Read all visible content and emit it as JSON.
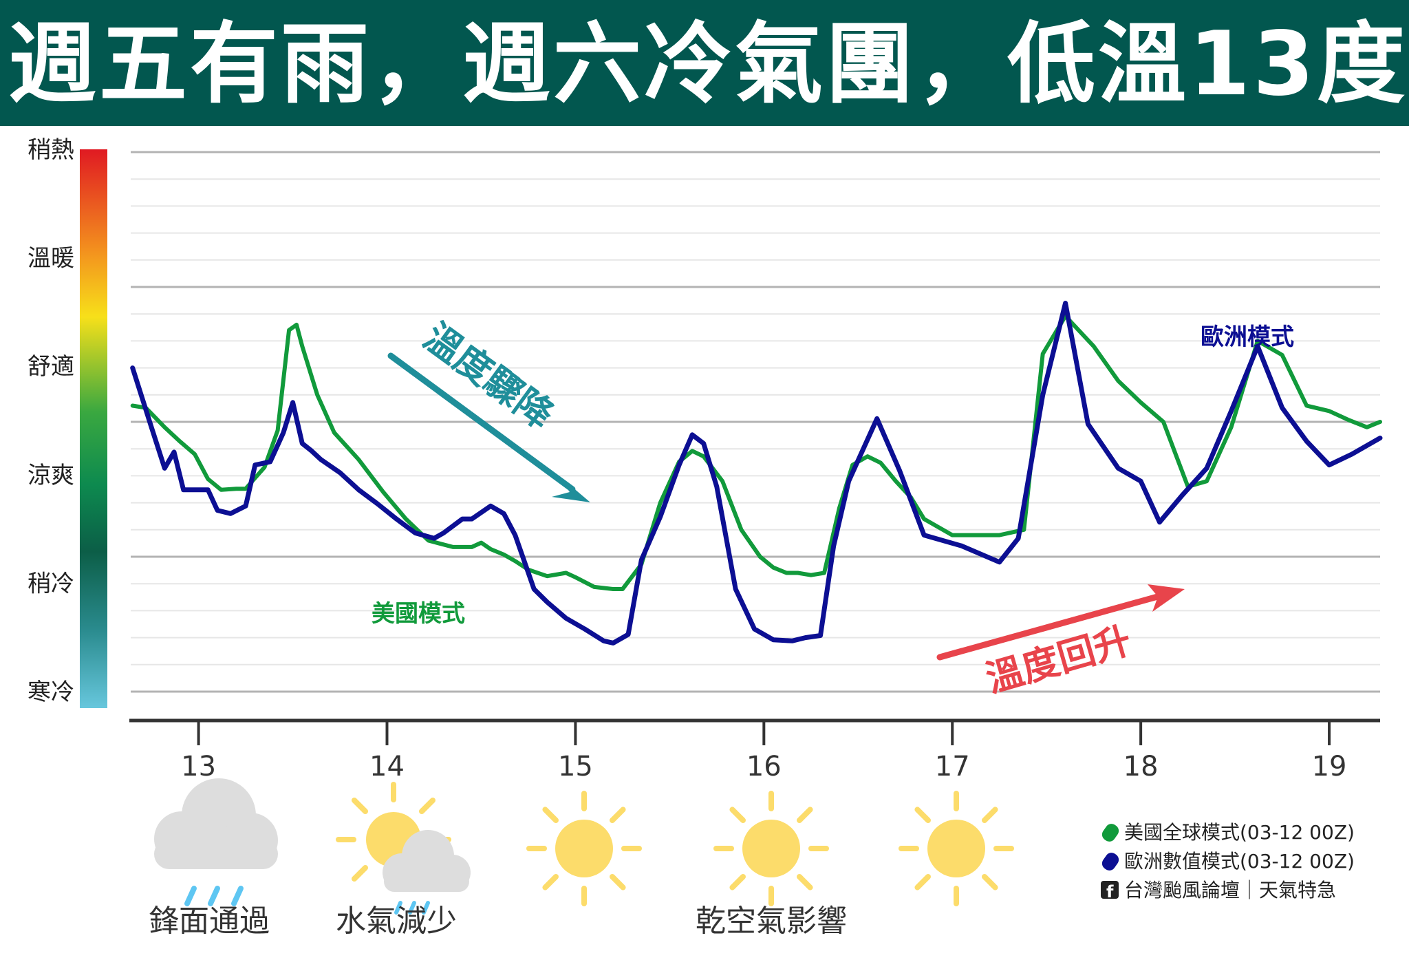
{
  "header": {
    "title": "週五有雨，週六冷氣團，低溫13度"
  },
  "colors": {
    "header_bg": "#02574f",
    "us_model": "#119a3b",
    "eu_model": "#0c0f93",
    "drop_arrow": "#1f8e9a",
    "rise_arrow": "#e8444b",
    "sun": "#fcdc6b",
    "cloud": "#dddddd",
    "rain": "#5ec6f2"
  },
  "annotations": {
    "temp_drop": "溫度驟降",
    "temp_rise": "溫度回升",
    "us_model_label": "美國模式",
    "eu_model_label": "歐洲模式"
  },
  "weather": [
    {
      "day": "13",
      "icon": "rain-cloud-icon",
      "caption": "鋒面通過"
    },
    {
      "day": "14",
      "icon": "partly-sunny-icon",
      "caption": "水氣減少"
    },
    {
      "day": "15",
      "icon": "sun-icon",
      "caption": ""
    },
    {
      "day": "16",
      "icon": "sun-icon",
      "caption": "乾空氣影響"
    },
    {
      "day": "17",
      "icon": "sun-icon",
      "caption": ""
    }
  ],
  "legend": {
    "us": "美國全球模式(03-12 00Z)",
    "eu": "歐洲數值模式(03-12 00Z)",
    "source": "台灣颱風論壇｜天氣特急"
  },
  "chart_data": {
    "type": "line",
    "xlabel": "",
    "ylabel": "",
    "x_ticks": [
      13,
      14,
      15,
      16,
      17,
      18,
      19
    ],
    "xlim": [
      12.64,
      19.27
    ],
    "ylim": [
      0,
      5
    ],
    "y_categories": [
      "寒冷",
      "稍冷",
      "涼爽",
      "舒適",
      "溫暖",
      "稍熱"
    ],
    "series": [
      {
        "name": "美國全球模式(03-12 00Z)",
        "x": [
          12.65,
          12.72,
          12.82,
          12.9,
          12.98,
          13.05,
          13.12,
          13.2,
          13.25,
          13.35,
          13.42,
          13.48,
          13.52,
          13.55,
          13.63,
          13.72,
          13.85,
          13.98,
          14.1,
          14.22,
          14.35,
          14.45,
          14.5,
          14.55,
          14.62,
          14.68,
          14.75,
          14.85,
          14.95,
          15.0,
          15.1,
          15.2,
          15.25,
          15.35,
          15.45,
          15.55,
          15.62,
          15.68,
          15.78,
          15.88,
          15.98,
          16.05,
          16.12,
          16.18,
          16.25,
          16.32,
          16.4,
          16.47,
          16.55,
          16.62,
          16.7,
          16.78,
          16.85,
          17.0,
          17.15,
          17.25,
          17.38,
          17.48,
          17.6,
          17.75,
          17.88,
          18.0,
          18.12,
          18.25,
          18.35,
          18.48,
          18.62,
          18.75,
          18.88,
          19.0,
          19.1,
          19.2,
          19.27
        ],
        "y": [
          2.65,
          2.63,
          2.45,
          2.32,
          2.2,
          1.97,
          1.87,
          1.88,
          1.88,
          2.08,
          2.42,
          3.35,
          3.4,
          3.2,
          2.75,
          2.4,
          2.15,
          1.85,
          1.6,
          1.4,
          1.34,
          1.34,
          1.38,
          1.32,
          1.27,
          1.21,
          1.13,
          1.07,
          1.1,
          1.06,
          0.97,
          0.95,
          0.95,
          1.18,
          1.75,
          2.13,
          2.23,
          2.18,
          1.95,
          1.5,
          1.25,
          1.15,
          1.1,
          1.1,
          1.08,
          1.1,
          1.7,
          2.1,
          2.18,
          2.12,
          1.95,
          1.8,
          1.6,
          1.45,
          1.45,
          1.45,
          1.5,
          3.13,
          3.48,
          3.2,
          2.88,
          2.68,
          2.5,
          1.9,
          1.95,
          2.45,
          3.25,
          3.12,
          2.65,
          2.6,
          2.52,
          2.45,
          2.5
        ]
      },
      {
        "name": "歐洲數值模式(03-12 00Z)",
        "x": [
          12.65,
          12.75,
          12.82,
          12.87,
          12.92,
          13.0,
          13.05,
          13.1,
          13.17,
          13.25,
          13.3,
          13.38,
          13.45,
          13.5,
          13.55,
          13.6,
          13.65,
          13.75,
          13.85,
          13.95,
          14.05,
          14.15,
          14.25,
          14.3,
          14.4,
          14.45,
          14.55,
          14.62,
          14.68,
          14.78,
          14.85,
          14.95,
          15.05,
          15.15,
          15.2,
          15.28,
          15.35,
          15.45,
          15.55,
          15.62,
          15.68,
          15.75,
          15.85,
          15.95,
          16.05,
          16.15,
          16.22,
          16.3,
          16.37,
          16.45,
          16.6,
          16.72,
          16.85,
          17.05,
          17.25,
          17.35,
          17.48,
          17.6,
          17.72,
          17.88,
          18.0,
          18.1,
          18.22,
          18.35,
          18.48,
          18.62,
          18.75,
          18.88,
          19.0,
          19.12,
          19.27
        ],
        "y": [
          3.0,
          2.45,
          2.07,
          2.22,
          1.87,
          1.87,
          1.87,
          1.68,
          1.65,
          1.72,
          2.1,
          2.13,
          2.4,
          2.68,
          2.3,
          2.23,
          2.15,
          2.03,
          1.87,
          1.74,
          1.6,
          1.47,
          1.42,
          1.47,
          1.6,
          1.6,
          1.72,
          1.65,
          1.45,
          0.95,
          0.83,
          0.68,
          0.58,
          0.47,
          0.45,
          0.53,
          1.22,
          1.62,
          2.1,
          2.38,
          2.3,
          1.9,
          0.95,
          0.58,
          0.48,
          0.47,
          0.5,
          0.52,
          1.35,
          1.95,
          2.53,
          2.05,
          1.45,
          1.35,
          1.2,
          1.42,
          2.75,
          3.6,
          2.48,
          2.07,
          1.95,
          1.57,
          1.82,
          2.07,
          2.6,
          3.2,
          2.63,
          2.32,
          2.1,
          2.2,
          2.35
        ]
      }
    ]
  }
}
